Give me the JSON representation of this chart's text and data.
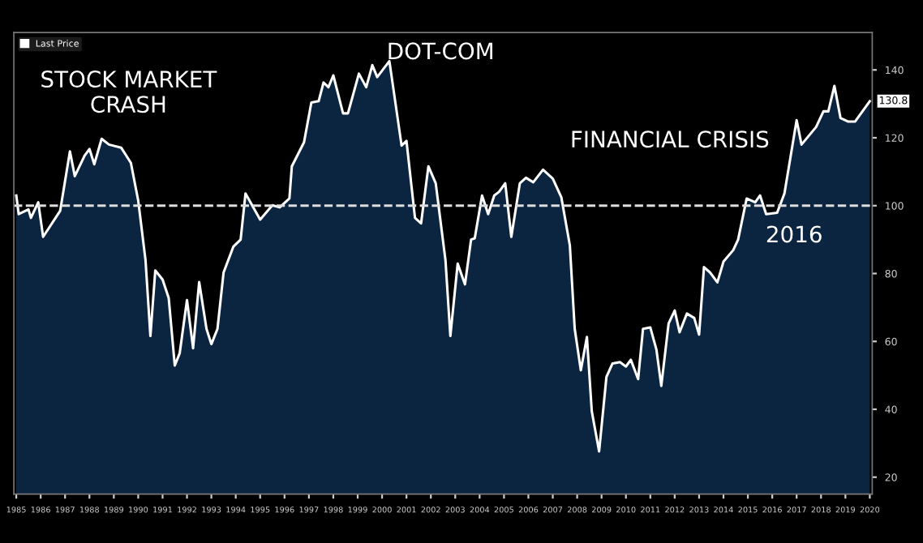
{
  "chart_data": {
    "type": "area",
    "x": [
      1985.0,
      1985.1,
      1985.5,
      1985.6,
      1985.9,
      1986.1,
      1986.8,
      1987.2,
      1987.4,
      1987.8,
      1988.0,
      1988.2,
      1988.5,
      1988.8,
      1989.3,
      1989.7,
      1990.0,
      1990.3,
      1990.5,
      1990.7,
      1991.0,
      1991.25,
      1991.5,
      1991.7,
      1992.0,
      1992.25,
      1992.5,
      1992.8,
      1993.0,
      1993.25,
      1993.5,
      1993.9,
      1994.2,
      1994.4,
      1995.0,
      1995.5,
      1995.8,
      1996.2,
      1996.3,
      1996.8,
      1997.1,
      1997.4,
      1997.6,
      1997.8,
      1998.0,
      1998.4,
      1998.6,
      1999.05,
      1999.35,
      1999.6,
      1999.8,
      2000.3,
      2000.8,
      2001.0,
      2001.35,
      2001.6,
      2001.9,
      2002.2,
      2002.6,
      2002.8,
      2003.1,
      2003.4,
      2003.65,
      2003.8,
      2004.1,
      2004.35,
      2004.6,
      2004.8,
      2005.05,
      2005.3,
      2005.65,
      2005.9,
      2006.2,
      2006.6,
      2007.0,
      2007.35,
      2007.7,
      2007.9,
      2008.15,
      2008.4,
      2008.6,
      2008.9,
      2009.2,
      2009.45,
      2009.75,
      2010.0,
      2010.2,
      2010.5,
      2010.7,
      2011.0,
      2011.25,
      2011.45,
      2011.75,
      2012.0,
      2012.2,
      2012.5,
      2012.8,
      2013.0,
      2013.2,
      2013.45,
      2013.75,
      2014.0,
      2014.4,
      2014.6,
      2014.95,
      2015.3,
      2015.5,
      2015.75,
      2016.2,
      2016.5,
      2017.0,
      2017.2,
      2017.8,
      2018.1,
      2018.3,
      2018.55,
      2018.8,
      2019.1,
      2019.4,
      2020.0
    ],
    "series": [
      {
        "name": "Last Price",
        "color": "#ffffff",
        "values": [
          103,
          97.5,
          98.9,
          96.4,
          101,
          90.8,
          98.5,
          116,
          108.7,
          114.7,
          116.7,
          112.2,
          119.7,
          118,
          117.1,
          112.6,
          101.5,
          83.9,
          61.6,
          80.9,
          78.2,
          72.8,
          52.9,
          56.5,
          72.2,
          58,
          77.5,
          63.7,
          59.2,
          63.7,
          80.3,
          87.9,
          90,
          103.6,
          95.9,
          100.1,
          99.5,
          102.1,
          111.6,
          118.7,
          130.4,
          130.8,
          136.3,
          134.9,
          138.4,
          127.2,
          127.2,
          138.9,
          134.9,
          141.4,
          137.9,
          142.6,
          117.7,
          119.1,
          96.4,
          94.8,
          111.6,
          106.6,
          83.9,
          61.6,
          82.9,
          76.8,
          90,
          90.4,
          103,
          97.5,
          103,
          104.1,
          106.6,
          90.8,
          106.6,
          108.2,
          106.9,
          110.6,
          108,
          102.5,
          88.3,
          63.7,
          51.5,
          61.3,
          39.4,
          27.6,
          49.5,
          53.5,
          53.9,
          52.6,
          54.6,
          48.9,
          63.7,
          64.1,
          57.6,
          46.9,
          65.3,
          69.1,
          62.7,
          68.2,
          66.9,
          62,
          81.9,
          80.3,
          77.4,
          83.5,
          86.9,
          90,
          102.1,
          101,
          103,
          97.5,
          97.9,
          103.6,
          125.2,
          118,
          123.2,
          127.8,
          127.8,
          135.3,
          125.8,
          124.8,
          124.8,
          130.8
        ]
      }
    ],
    "xlim": [
      1984.9,
      2020.1
    ],
    "xticks": [
      1985,
      1986,
      1987,
      1988,
      1989,
      1990,
      1991,
      1992,
      1993,
      1994,
      1995,
      1996,
      1997,
      1998,
      1999,
      2000,
      2001,
      2002,
      2003,
      2004,
      2005,
      2006,
      2007,
      2008,
      2009,
      2010,
      2011,
      2012,
      2013,
      2014,
      2015,
      2016,
      2017,
      2018,
      2019,
      2020
    ],
    "ylim": [
      15,
      151
    ],
    "yticks": [
      20,
      40,
      60,
      80,
      100,
      120,
      140
    ],
    "ref_lines": [
      {
        "axis": "y",
        "value": 100,
        "color": "#dddddd",
        "line_style": "dashed"
      }
    ],
    "annotations": [
      {
        "text": "STOCK MARKET\nCRASH"
      },
      {
        "text": "DOT-COM"
      },
      {
        "text": "FINANCIAL CRISIS"
      },
      {
        "text": "2016"
      },
      {
        "text": "130.8",
        "x": 2020.0,
        "y": 130.8
      }
    ],
    "legend": "top left",
    "grid": false,
    "marker": "none",
    "line_style": "solid"
  }
}
